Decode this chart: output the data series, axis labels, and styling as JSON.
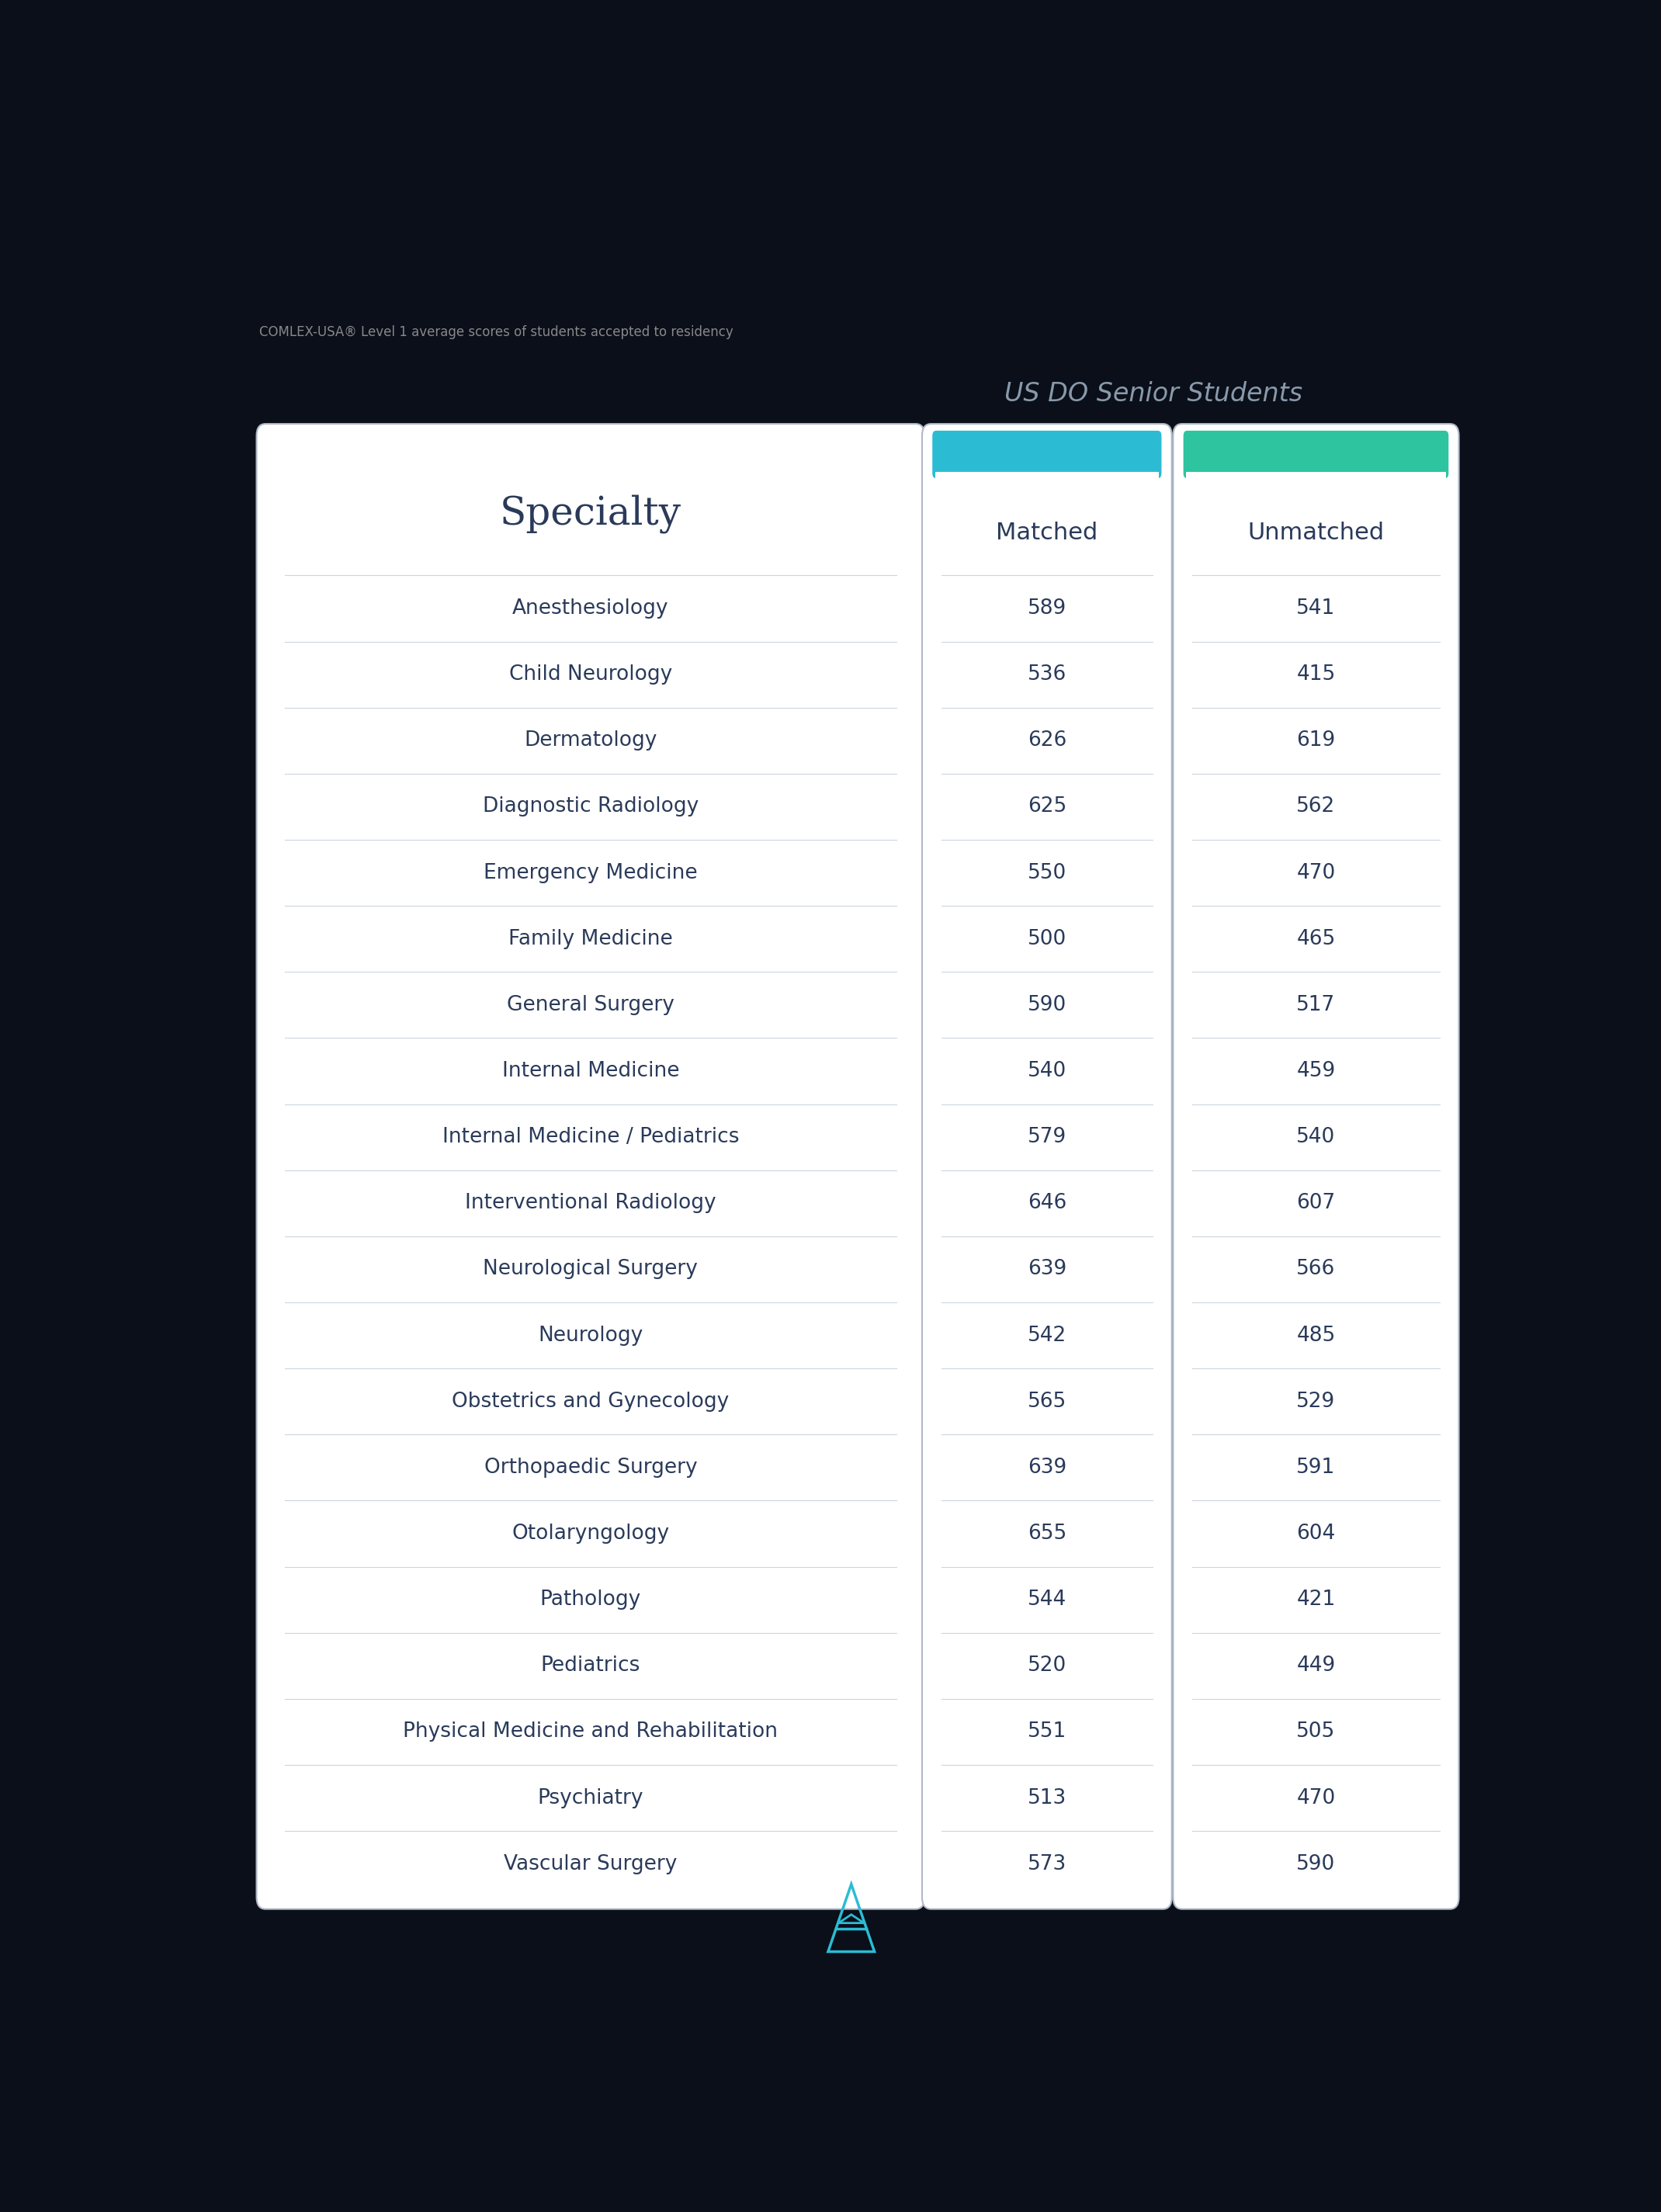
{
  "title": "COMLEX-USA® Level 1 average scores of students accepted to residency",
  "group_label": "US DO Senior Students",
  "col_headers": [
    "Specialty",
    "Matched",
    "Unmatched"
  ],
  "specialties": [
    "Anesthesiology",
    "Child Neurology",
    "Dermatology",
    "Diagnostic Radiology",
    "Emergency Medicine",
    "Family Medicine",
    "General Surgery",
    "Internal Medicine",
    "Internal Medicine / Pediatrics",
    "Interventional Radiology",
    "Neurological Surgery",
    "Neurology",
    "Obstetrics and Gynecology",
    "Orthopaedic Surgery",
    "Otolaryngology",
    "Pathology",
    "Pediatrics",
    "Physical Medicine and Rehabilitation",
    "Psychiatry",
    "Vascular Surgery"
  ],
  "matched": [
    589,
    536,
    626,
    625,
    550,
    500,
    590,
    540,
    579,
    646,
    639,
    542,
    565,
    639,
    655,
    544,
    520,
    551,
    513,
    573
  ],
  "unmatched": [
    541,
    415,
    619,
    562,
    470,
    465,
    517,
    459,
    540,
    607,
    566,
    485,
    529,
    591,
    604,
    421,
    449,
    505,
    470,
    590
  ],
  "bg_color": "#0a0f1a",
  "table_bg": "#ffffff",
  "border_color": "#b0b8c8",
  "header_matched_color": "#2bbcd4",
  "header_unmatched_color": "#2ec4a0",
  "title_color": "#888888",
  "group_label_color": "#8899aa",
  "specialty_color": "#2a3a5a",
  "score_color": "#2a3a5a",
  "row_line_color": "#ccd5e0",
  "col_header_color": "#2a3a5a",
  "logo_color": "#2bbcd4",
  "logo_dark_color": "#1a3050"
}
